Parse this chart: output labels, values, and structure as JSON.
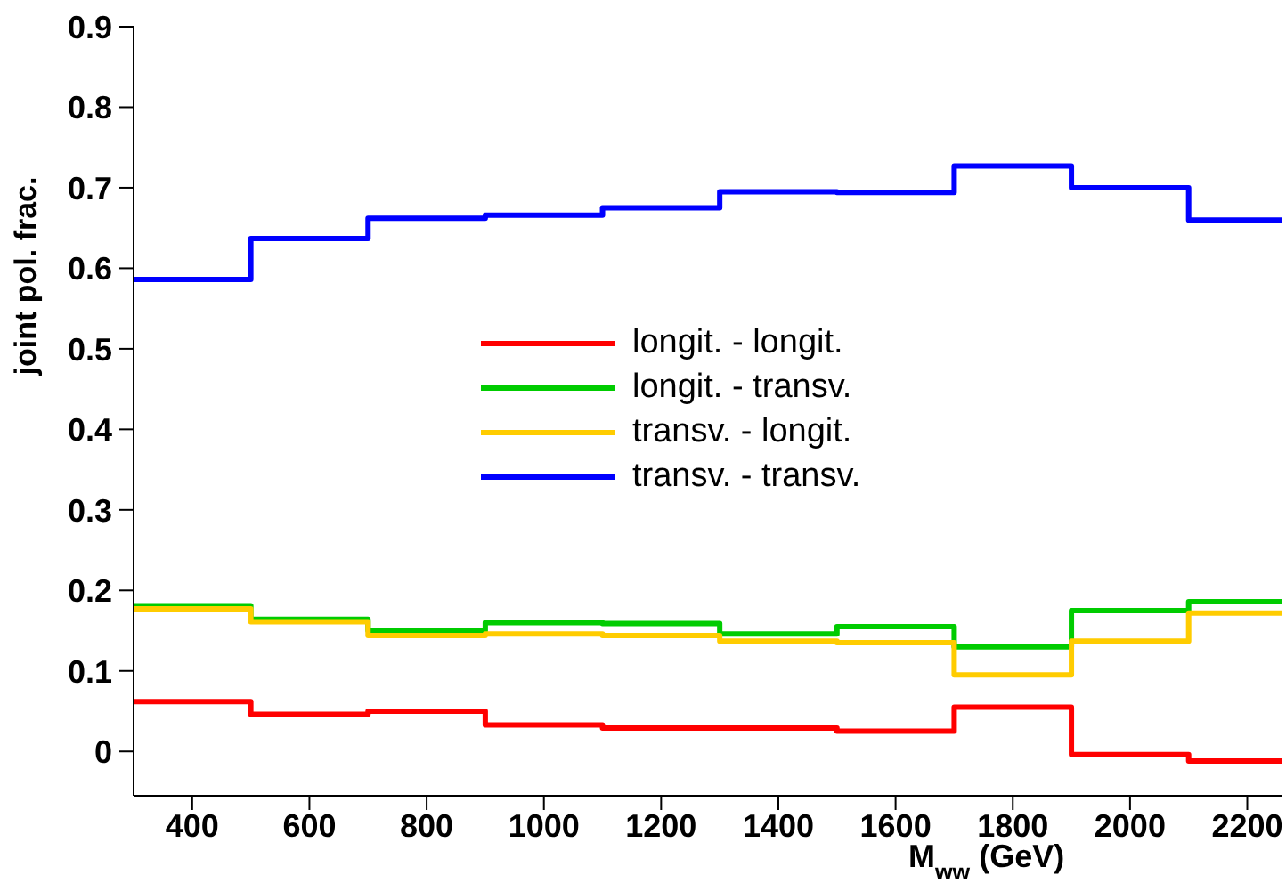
{
  "chart_data": {
    "type": "histogram",
    "xlabel": "M$_{ww}$ (GeV)",
    "ylabel": "joint pol. frac.",
    "bins": [
      300,
      500,
      700,
      900,
      1100,
      1300,
      1500,
      1700,
      1900,
      2100,
      2260
    ],
    "series": [
      {
        "name": "longit. - longit.",
        "color": "#ff0000",
        "values": [
          0.062,
          0.046,
          0.05,
          0.033,
          0.029,
          0.029,
          0.025,
          0.055,
          -0.004,
          -0.012
        ]
      },
      {
        "name": "longit. - transv.",
        "color": "#00cc00",
        "values": [
          0.181,
          0.164,
          0.15,
          0.16,
          0.159,
          0.146,
          0.155,
          0.13,
          0.175,
          0.186
        ]
      },
      {
        "name": "transv. - longit.",
        "color": "#ffcc00",
        "values": [
          0.177,
          0.161,
          0.144,
          0.146,
          0.144,
          0.137,
          0.135,
          0.095,
          0.137,
          0.172
        ]
      },
      {
        "name": "transv. - transv.",
        "color": "#0000ff",
        "values": [
          0.586,
          0.637,
          0.662,
          0.666,
          0.675,
          0.695,
          0.694,
          0.727,
          0.7,
          0.66
        ]
      }
    ],
    "xlim": [
      300,
      2260
    ],
    "xticks": [
      400,
      600,
      800,
      1000,
      1200,
      1400,
      1600,
      1800,
      2000,
      2200
    ],
    "ylim": [
      -0.055,
      0.9
    ],
    "yticks": [
      0,
      0.1,
      0.2,
      0.3,
      0.4,
      0.5,
      0.6,
      0.7,
      0.8,
      0.9
    ],
    "grid": false,
    "legend": "center",
    "line_style": "solid",
    "marker": "none"
  }
}
